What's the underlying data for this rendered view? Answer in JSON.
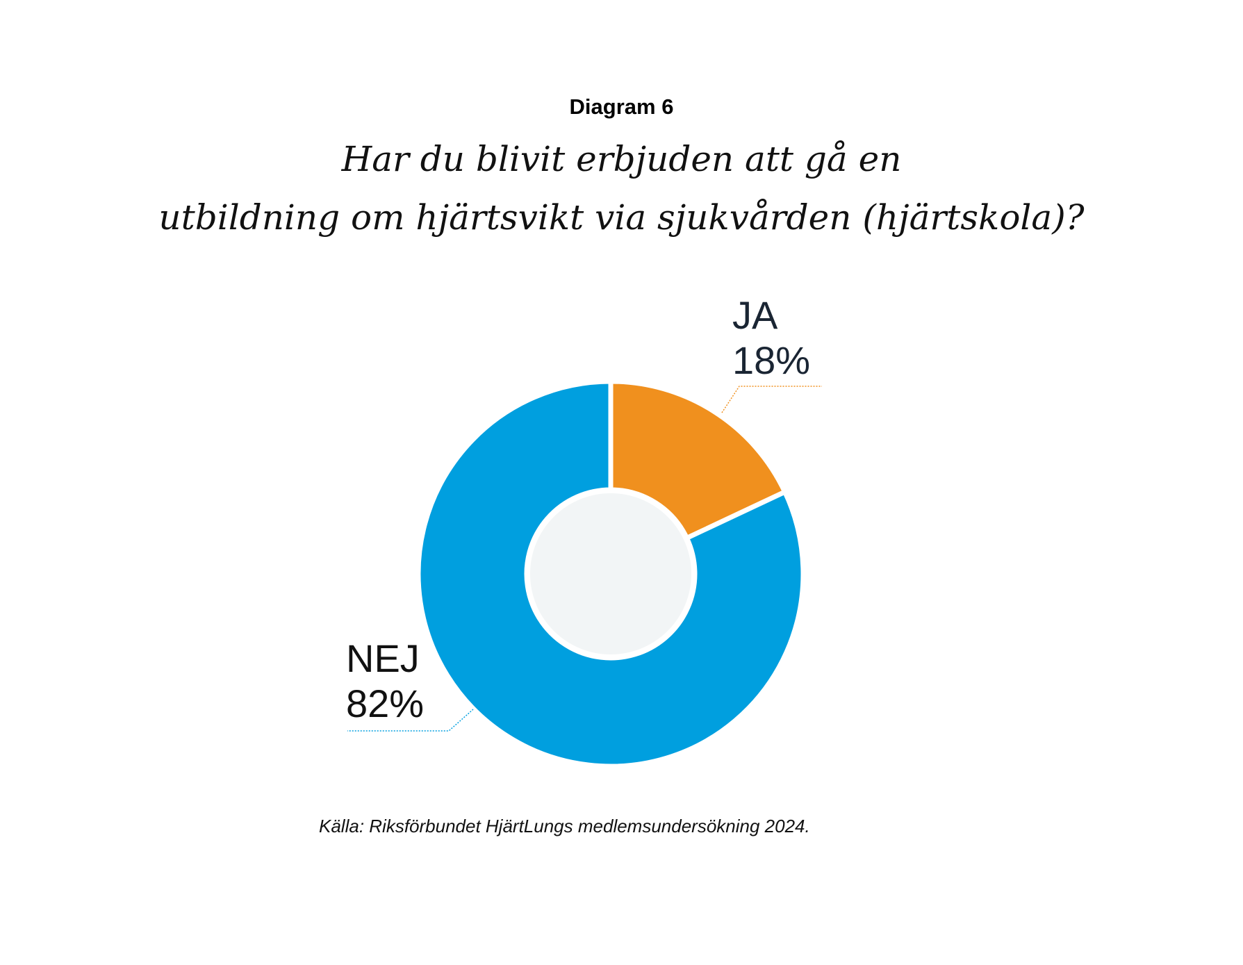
{
  "chart_data": {
    "type": "pie",
    "donut": true,
    "label": "Diagram 6",
    "title_lines": [
      "Har du blivit erbjuden att gå en",
      "utbildning om hjärtsvikt via sjukvården (hjärtskola)?"
    ],
    "slices": [
      {
        "name": "JA",
        "value": 18,
        "value_label": "18%",
        "color": "#f0901e"
      },
      {
        "name": "NEJ",
        "value": 82,
        "value_label": "82%",
        "color": "#009fdf"
      }
    ],
    "center_color": "#f2f5f6",
    "source": "Källa: Riksförbundet HjärtLungs medlemsundersökning 2024."
  }
}
